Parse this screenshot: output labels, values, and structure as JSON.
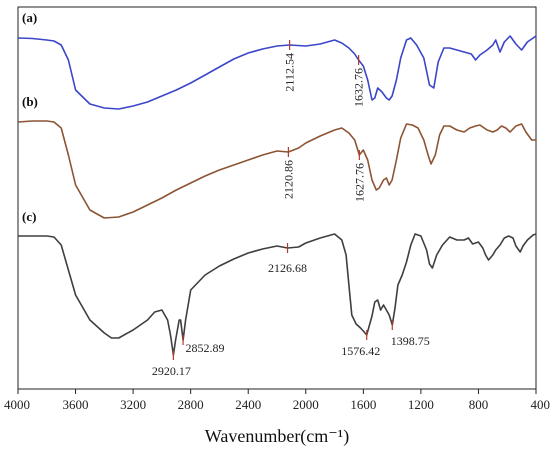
{
  "chart_data": {
    "type": "line",
    "xlabel": "Wavenumber(cm⁻¹)",
    "xlim": [
      4000,
      400
    ],
    "x_reversed": true,
    "x_ticks": [
      4000,
      3600,
      3200,
      2800,
      2400,
      2000,
      1600,
      1200,
      800,
      400
    ],
    "y_ticks_shown": false,
    "grid": false,
    "series": [
      {
        "name": "(a)",
        "color": "#3b46c9",
        "points": [
          [
            4000,
            38
          ],
          [
            3900,
            38.5
          ],
          [
            3800,
            40
          ],
          [
            3750,
            41
          ],
          [
            3700,
            45
          ],
          [
            3650,
            60
          ],
          [
            3600,
            90
          ],
          [
            3500,
            104
          ],
          [
            3400,
            108
          ],
          [
            3300,
            109
          ],
          [
            3200,
            106
          ],
          [
            3100,
            102
          ],
          [
            3000,
            96
          ],
          [
            2900,
            90
          ],
          [
            2800,
            83
          ],
          [
            2700,
            75
          ],
          [
            2600,
            67
          ],
          [
            2500,
            59
          ],
          [
            2400,
            53
          ],
          [
            2300,
            49
          ],
          [
            2200,
            46
          ],
          [
            2112.54,
            45
          ],
          [
            2000,
            46
          ],
          [
            1900,
            44
          ],
          [
            1800,
            40
          ],
          [
            1750,
            43
          ],
          [
            1700,
            48
          ],
          [
            1660,
            54
          ],
          [
            1632.76,
            60
          ],
          [
            1600,
            66
          ],
          [
            1570,
            80
          ],
          [
            1540,
            100
          ],
          [
            1520,
            98
          ],
          [
            1500,
            88
          ],
          [
            1470,
            92
          ],
          [
            1440,
            98
          ],
          [
            1420,
            100
          ],
          [
            1400,
            96
          ],
          [
            1370,
            80
          ],
          [
            1340,
            58
          ],
          [
            1300,
            40
          ],
          [
            1270,
            38
          ],
          [
            1230,
            45
          ],
          [
            1180,
            58
          ],
          [
            1140,
            85
          ],
          [
            1110,
            88
          ],
          [
            1080,
            62
          ],
          [
            1040,
            48
          ],
          [
            1000,
            48
          ],
          [
            950,
            50
          ],
          [
            900,
            52
          ],
          [
            850,
            54
          ],
          [
            820,
            60
          ],
          [
            790,
            55
          ],
          [
            740,
            50
          ],
          [
            700,
            45
          ],
          [
            680,
            40
          ],
          [
            650,
            52
          ],
          [
            620,
            42
          ],
          [
            580,
            36
          ],
          [
            540,
            44
          ],
          [
            500,
            50
          ],
          [
            460,
            42
          ],
          [
            400,
            36
          ]
        ]
      },
      {
        "name": "(b)",
        "color": "#8c5433",
        "points": [
          [
            4000,
            122
          ],
          [
            3900,
            121
          ],
          [
            3800,
            121
          ],
          [
            3750,
            122
          ],
          [
            3700,
            128
          ],
          [
            3650,
            155
          ],
          [
            3600,
            185
          ],
          [
            3500,
            210
          ],
          [
            3400,
            218
          ],
          [
            3300,
            217
          ],
          [
            3200,
            212
          ],
          [
            3100,
            205
          ],
          [
            3000,
            198
          ],
          [
            2900,
            190
          ],
          [
            2800,
            183
          ],
          [
            2700,
            176
          ],
          [
            2600,
            170
          ],
          [
            2500,
            165
          ],
          [
            2400,
            160
          ],
          [
            2300,
            155
          ],
          [
            2200,
            151
          ],
          [
            2120.86,
            152
          ],
          [
            2050,
            148
          ],
          [
            2000,
            143
          ],
          [
            1900,
            136
          ],
          [
            1800,
            130
          ],
          [
            1750,
            128
          ],
          [
            1700,
            133
          ],
          [
            1660,
            140
          ],
          [
            1627.76,
            155
          ],
          [
            1600,
            150
          ],
          [
            1570,
            160
          ],
          [
            1540,
            180
          ],
          [
            1510,
            190
          ],
          [
            1490,
            188
          ],
          [
            1460,
            180
          ],
          [
            1440,
            178
          ],
          [
            1420,
            185
          ],
          [
            1400,
            180
          ],
          [
            1370,
            160
          ],
          [
            1340,
            138
          ],
          [
            1300,
            124
          ],
          [
            1260,
            125
          ],
          [
            1220,
            128
          ],
          [
            1180,
            140
          ],
          [
            1150,
            155
          ],
          [
            1130,
            164
          ],
          [
            1100,
            155
          ],
          [
            1070,
            135
          ],
          [
            1040,
            126
          ],
          [
            1000,
            126
          ],
          [
            950,
            130
          ],
          [
            900,
            132
          ],
          [
            860,
            128
          ],
          [
            820,
            126
          ],
          [
            790,
            125
          ],
          [
            740,
            130
          ],
          [
            700,
            132
          ],
          [
            670,
            130
          ],
          [
            640,
            126
          ],
          [
            610,
            128
          ],
          [
            580,
            132
          ],
          [
            540,
            126
          ],
          [
            500,
            124
          ],
          [
            470,
            132
          ],
          [
            430,
            140
          ],
          [
            400,
            140
          ]
        ]
      },
      {
        "name": "(c)",
        "color": "#3f3f3f",
        "points": [
          [
            4000,
            236
          ],
          [
            3900,
            236
          ],
          [
            3800,
            236
          ],
          [
            3750,
            237
          ],
          [
            3700,
            245
          ],
          [
            3650,
            270
          ],
          [
            3600,
            295
          ],
          [
            3500,
            320
          ],
          [
            3400,
            333
          ],
          [
            3350,
            338
          ],
          [
            3300,
            338
          ],
          [
            3200,
            330
          ],
          [
            3100,
            320
          ],
          [
            3050,
            312
          ],
          [
            3000,
            310
          ],
          [
            2960,
            320
          ],
          [
            2940,
            335
          ],
          [
            2920.17,
            355
          ],
          [
            2905,
            340
          ],
          [
            2880,
            320
          ],
          [
            2870,
            320
          ],
          [
            2852.89,
            340
          ],
          [
            2835,
            320
          ],
          [
            2800,
            290
          ],
          [
            2700,
            275
          ],
          [
            2600,
            266
          ],
          [
            2500,
            259
          ],
          [
            2400,
            253
          ],
          [
            2300,
            249
          ],
          [
            2200,
            246
          ],
          [
            2126.68,
            248
          ],
          [
            2050,
            247
          ],
          [
            2000,
            243
          ],
          [
            1900,
            238
          ],
          [
            1800,
            234
          ],
          [
            1750,
            240
          ],
          [
            1720,
            255
          ],
          [
            1700,
            285
          ],
          [
            1680,
            315
          ],
          [
            1650,
            324
          ],
          [
            1620,
            328
          ],
          [
            1600,
            331
          ],
          [
            1576.42,
            335
          ],
          [
            1540,
            316
          ],
          [
            1520,
            302
          ],
          [
            1500,
            300
          ],
          [
            1480,
            310
          ],
          [
            1460,
            305
          ],
          [
            1440,
            310
          ],
          [
            1420,
            315
          ],
          [
            1398.75,
            325
          ],
          [
            1380,
            308
          ],
          [
            1360,
            285
          ],
          [
            1330,
            275
          ],
          [
            1300,
            262
          ],
          [
            1270,
            245
          ],
          [
            1240,
            234
          ],
          [
            1200,
            236
          ],
          [
            1160,
            250
          ],
          [
            1140,
            264
          ],
          [
            1120,
            268
          ],
          [
            1090,
            255
          ],
          [
            1050,
            245
          ],
          [
            1000,
            237
          ],
          [
            950,
            240
          ],
          [
            900,
            240
          ],
          [
            870,
            238
          ],
          [
            840,
            244
          ],
          [
            800,
            242
          ],
          [
            770,
            248
          ],
          [
            750,
            255
          ],
          [
            730,
            260
          ],
          [
            700,
            255
          ],
          [
            680,
            250
          ],
          [
            650,
            245
          ],
          [
            620,
            238
          ],
          [
            590,
            236
          ],
          [
            560,
            238
          ],
          [
            540,
            246
          ],
          [
            510,
            252
          ],
          [
            490,
            246
          ],
          [
            460,
            240
          ],
          [
            420,
            235
          ],
          [
            400,
            234
          ]
        ]
      }
    ],
    "annotations": [
      {
        "series": "(a)",
        "x": 2112.54,
        "text": "2112.54",
        "orientation": "vertical"
      },
      {
        "series": "(a)",
        "x": 1632.76,
        "text": "1632.76",
        "orientation": "vertical"
      },
      {
        "series": "(b)",
        "x": 2120.86,
        "text": "2120.86",
        "orientation": "vertical"
      },
      {
        "series": "(b)",
        "x": 1627.76,
        "text": "1627.76",
        "orientation": "vertical"
      },
      {
        "series": "(c)",
        "x": 2126.68,
        "text": "2126.68",
        "orientation": "horizontal"
      },
      {
        "series": "(c)",
        "x": 2920.17,
        "text": "2920.17",
        "orientation": "horizontal"
      },
      {
        "series": "(c)",
        "x": 2852.89,
        "text": "2852.89",
        "orientation": "horizontal"
      },
      {
        "series": "(c)",
        "x": 1576.42,
        "text": "1576.42",
        "orientation": "horizontal"
      },
      {
        "series": "(c)",
        "x": 1398.75,
        "text": "1398.75",
        "orientation": "horizontal"
      }
    ]
  }
}
